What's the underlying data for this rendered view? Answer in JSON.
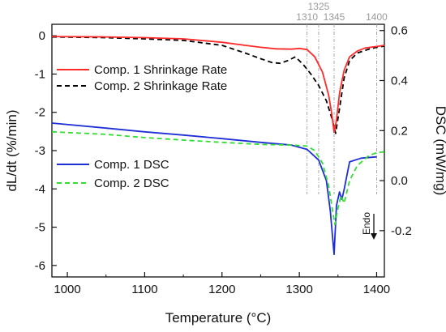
{
  "chart_data": {
    "type": "line",
    "xlabel": "Temperature (°C)",
    "ylabel_left": "dL/dt (%/min)",
    "ylabel_right": "DSC (mW/mg)",
    "xlim": [
      980,
      1410
    ],
    "ylim_left": [
      -6.3,
      0.3
    ],
    "ylim_right": [
      -0.385,
      0.625
    ],
    "xticks": [
      1000,
      1100,
      1200,
      1300,
      1400
    ],
    "yticks_left": [
      0,
      -1,
      -2,
      -3,
      -4,
      -5,
      -6
    ],
    "yticks_right": [
      0.6,
      0.4,
      0.2,
      0.0,
      -0.2
    ],
    "xtick_labels": [
      "1000",
      "1100",
      "1200",
      "1300",
      "1400"
    ],
    "ytick_labels_left": [
      "0",
      "-1",
      "-2",
      "-3",
      "-4",
      "-5",
      "-6"
    ],
    "ytick_labels_right": [
      "0.6",
      "0.4",
      "0.2",
      "0.0",
      "-0.2"
    ],
    "reference_lines": [
      {
        "x": 1310,
        "label": "1310"
      },
      {
        "x": 1325,
        "label": "1325"
      },
      {
        "x": 1345,
        "label": "1345"
      },
      {
        "x": 1400,
        "label": "1400"
      }
    ],
    "annotation": {
      "text": "Endo",
      "x": 1392,
      "y_axis": "left",
      "y": -4.7
    },
    "colors": {
      "comp1_rate": "#ff2a2a",
      "comp2_rate": "#000000",
      "comp1_dsc": "#1f2fd6",
      "comp2_dsc": "#33dd33"
    },
    "series": [
      {
        "name": "Comp. 1 Shrinkage Rate",
        "axis": "left",
        "style": "solid",
        "color": "#ff2a2a",
        "x": [
          980,
          1050,
          1100,
          1150,
          1200,
          1230,
          1250,
          1270,
          1290,
          1300,
          1310,
          1320,
          1330,
          1338,
          1342,
          1345,
          1348,
          1352,
          1358,
          1365,
          1375,
          1385,
          1400,
          1410
        ],
        "y": [
          -0.02,
          -0.03,
          -0.05,
          -0.08,
          -0.17,
          -0.25,
          -0.3,
          -0.34,
          -0.35,
          -0.33,
          -0.36,
          -0.55,
          -0.95,
          -1.55,
          -2.05,
          -2.52,
          -2.2,
          -1.5,
          -0.9,
          -0.55,
          -0.4,
          -0.32,
          -0.28,
          -0.25
        ]
      },
      {
        "name": "Comp. 2 Shrinkage Rate",
        "axis": "left",
        "style": "dashed",
        "color": "#000000",
        "x": [
          980,
          1050,
          1100,
          1150,
          1200,
          1230,
          1250,
          1265,
          1275,
          1285,
          1295,
          1305,
          1315,
          1325,
          1335,
          1342,
          1347,
          1352,
          1358,
          1365,
          1375,
          1390,
          1400,
          1410
        ],
        "y": [
          -0.03,
          -0.05,
          -0.08,
          -0.12,
          -0.25,
          -0.45,
          -0.6,
          -0.7,
          -0.72,
          -0.65,
          -0.55,
          -0.75,
          -1.0,
          -1.3,
          -1.7,
          -2.15,
          -2.55,
          -1.9,
          -1.1,
          -0.65,
          -0.45,
          -0.35,
          -0.3,
          -0.27
        ]
      },
      {
        "name": "Comp. 1 DSC",
        "axis": "right",
        "style": "solid",
        "color": "#1f2fd6",
        "x": [
          980,
          1050,
          1100,
          1150,
          1200,
          1250,
          1290,
          1310,
          1325,
          1335,
          1340,
          1343,
          1345,
          1348,
          1352,
          1355,
          1358,
          1365,
          1380,
          1400
        ],
        "y": [
          0.23,
          0.21,
          0.195,
          0.182,
          0.168,
          0.153,
          0.142,
          0.125,
          0.082,
          0.0,
          -0.12,
          -0.225,
          -0.295,
          -0.1,
          -0.045,
          -0.075,
          -0.035,
          0.075,
          0.09,
          0.095
        ]
      },
      {
        "name": "Comp. 2 DSC",
        "axis": "right",
        "style": "dashed",
        "color": "#33dd33",
        "x": [
          980,
          1050,
          1100,
          1150,
          1200,
          1250,
          1290,
          1310,
          1320,
          1330,
          1338,
          1343,
          1346,
          1350,
          1354,
          1358,
          1365,
          1375,
          1390,
          1400,
          1410
        ],
        "y": [
          0.195,
          0.185,
          0.172,
          0.162,
          0.153,
          0.145,
          0.142,
          0.138,
          0.12,
          0.07,
          -0.02,
          -0.12,
          -0.175,
          -0.11,
          -0.06,
          -0.09,
          0.0,
          0.06,
          0.1,
          0.112,
          0.115
        ]
      }
    ]
  }
}
